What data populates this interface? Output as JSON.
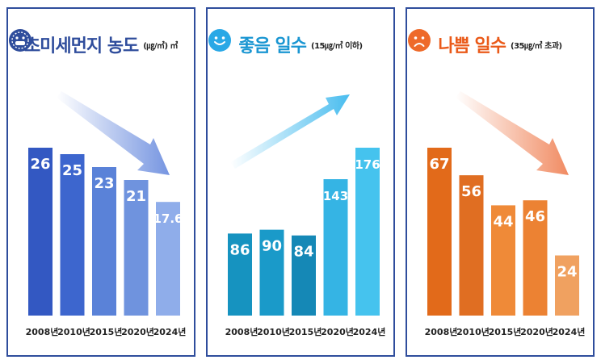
{
  "chart_data": [
    {
      "type": "bar",
      "title": "초미세먼지 농도",
      "unit_label": "(㎍/㎥) ㎥",
      "categories": [
        "2008년",
        "2010년",
        "2015년",
        "2020년",
        "2024년"
      ],
      "values": [
        26,
        25,
        23,
        21,
        17.6
      ],
      "data_labels": [
        "26",
        "25",
        "23",
        "21",
        "17.6"
      ],
      "bar_colors": [
        "#3358c2",
        "#3d66ce",
        "#5a82d8",
        "#6f93de",
        "#8fadea"
      ],
      "title_color": "#2f4d9c",
      "icon": "mask-face-icon",
      "trend": "down"
    },
    {
      "type": "bar",
      "title": "좋음 일수",
      "unit_label": "(15㎍/㎥ 이하)",
      "categories": [
        "2008년",
        "2010년",
        "2015년",
        "2020년",
        "2024년"
      ],
      "values": [
        86,
        90,
        84,
        143,
        176
      ],
      "data_labels": [
        "86",
        "90",
        "84",
        "143",
        "176"
      ],
      "bar_colors": [
        "#1693c0",
        "#1a9ac9",
        "#1588b6",
        "#35b4e4",
        "#45c3ee"
      ],
      "title_color": "#1a96d2",
      "icon": "smile-face-icon",
      "trend": "up"
    },
    {
      "type": "bar",
      "title": "나쁨 일수",
      "unit_label": "(35㎍/㎥ 초과)",
      "categories": [
        "2008년",
        "2010년",
        "2015년",
        "2020년",
        "2024년"
      ],
      "values": [
        67,
        56,
        44,
        46,
        24
      ],
      "data_labels": [
        "67",
        "56",
        "44",
        "46",
        "24"
      ],
      "bar_colors": [
        "#e26a1a",
        "#e06e22",
        "#ef8a38",
        "#ec8233",
        "#f0a160"
      ],
      "title_color": "#ea5a19",
      "icon": "frown-face-icon",
      "trend": "down"
    }
  ]
}
